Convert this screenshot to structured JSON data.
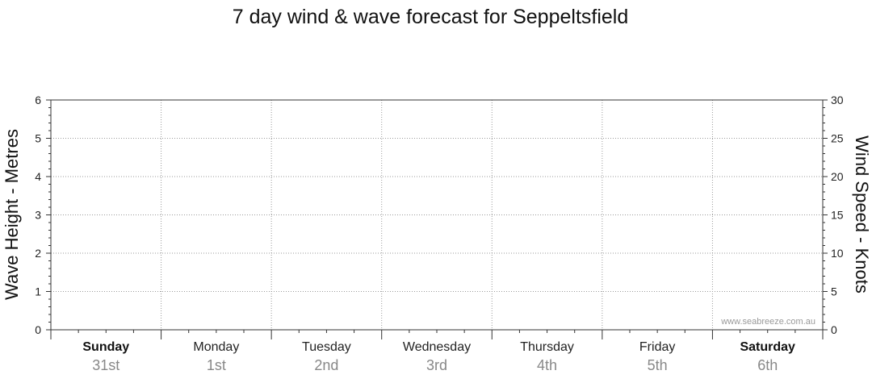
{
  "chart_data": {
    "type": "line",
    "title": "7 day wind & wave forecast for Seppeltsfield",
    "ylabel_left": "Wave Height - Metres",
    "ylabel_right": "Wind Speed - Knots",
    "ylim_left": [
      0,
      6
    ],
    "yticks_left": [
      "0",
      "1",
      "2",
      "3",
      "4",
      "5",
      "6"
    ],
    "ylim_right": [
      0,
      30
    ],
    "yticks_right": [
      "0",
      "5",
      "10",
      "15",
      "20",
      "25",
      "30"
    ],
    "grid": true,
    "days": [
      {
        "name": "Sunday",
        "date": "31st",
        "weekend": true
      },
      {
        "name": "Monday",
        "date": "1st",
        "weekend": false
      },
      {
        "name": "Tuesday",
        "date": "2nd",
        "weekend": false
      },
      {
        "name": "Wednesday",
        "date": "3rd",
        "weekend": false
      },
      {
        "name": "Thursday",
        "date": "4th",
        "weekend": false
      },
      {
        "name": "Friday",
        "date": "5th",
        "weekend": false
      },
      {
        "name": "Saturday",
        "date": "6th",
        "weekend": true
      }
    ],
    "series": [],
    "watermark": "www.seabreeze.com.au"
  }
}
